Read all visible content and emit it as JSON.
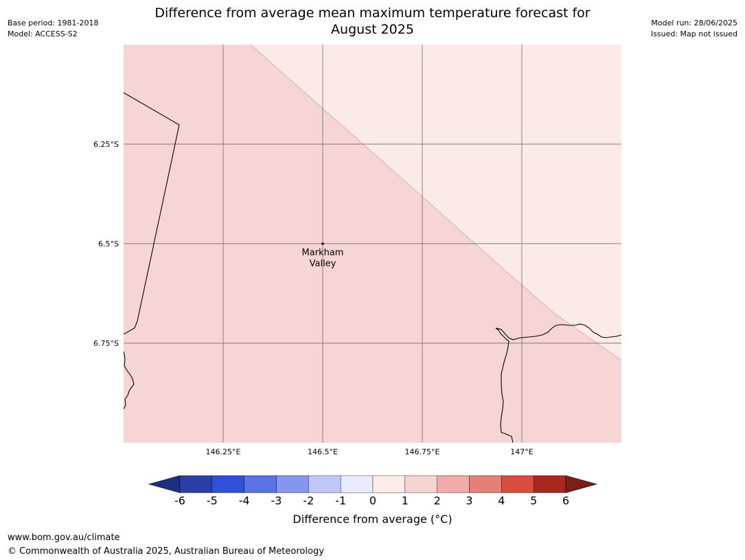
{
  "meta": {
    "base_period": "Base period: 1981-2018",
    "model": "Model: ACCESS-S2",
    "model_run": "Model run: 28/06/2025",
    "issued": "Issued: Map not issued"
  },
  "title": {
    "line1": "Difference from average mean maximum temperature forecast for",
    "line2": "August 2025"
  },
  "map": {
    "lon_ticks": [
      "146.25°E",
      "146.5°E",
      "146.75°E",
      "147°E"
    ],
    "lat_ticks": [
      "6.25°S",
      "6.5°S",
      "6.75°S"
    ],
    "location": {
      "name_line1": "Markham",
      "name_line2": "Valley"
    },
    "region_colors": {
      "band_1_2": "#f5d6d4",
      "band_0_1": "#fbeae8"
    }
  },
  "colorbar": {
    "label": "Difference from average (°C)",
    "ticks": [
      "-6",
      "-5",
      "-4",
      "-3",
      "-2",
      "-1",
      "0",
      "1",
      "2",
      "3",
      "4",
      "5",
      "6"
    ],
    "colors": [
      "#2a3ea8",
      "#3050dc",
      "#5a72e6",
      "#8496ee",
      "#c0c8f6",
      "#e8ecfc",
      "#fdecea",
      "#f5d4d2",
      "#efaca8",
      "#e77e78",
      "#db4c40",
      "#ab2820"
    ],
    "under_color": "#1e2f82",
    "over_color": "#7c1e18"
  },
  "footer": {
    "url": "www.bom.gov.au/climate",
    "copyright": "© Commonwealth of Australia 2025, Australian Bureau of Meteorology"
  }
}
